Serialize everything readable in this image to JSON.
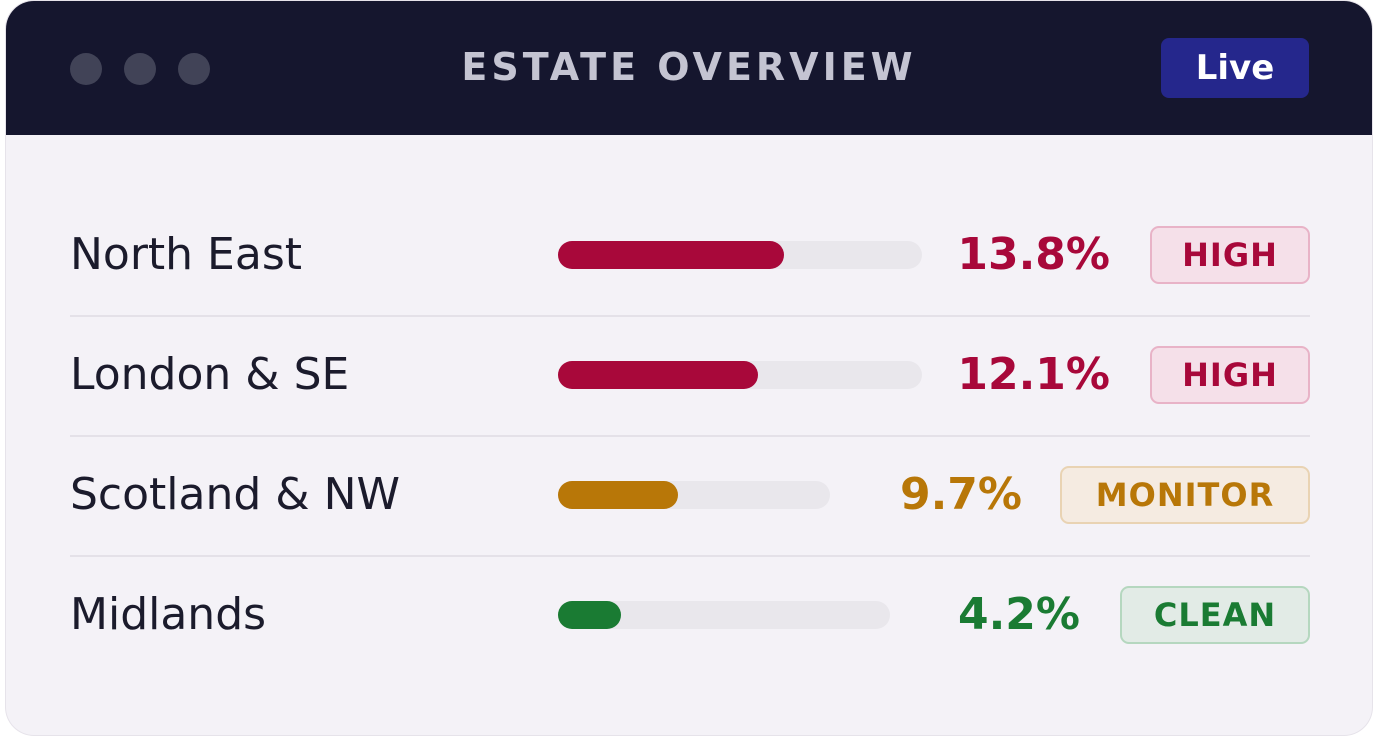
{
  "window": {
    "title": "ESTATE OVERVIEW",
    "status_badge": "Live"
  },
  "colors": {
    "titlebar": "#15162e",
    "live_badge": "#25278c",
    "high": "#a8083a",
    "monitor": "#b87708",
    "clean": "#1a7b33"
  },
  "rows": [
    {
      "region": "North East",
      "value": "13.8%",
      "fraction": 0.62,
      "status": "HIGH",
      "color": "#a8083a",
      "badge_bg": "#f5e0e9",
      "badge_border": "#e8b3c7"
    },
    {
      "region": "London & SE",
      "value": "12.1%",
      "fraction": 0.55,
      "status": "HIGH",
      "color": "#a8083a",
      "badge_bg": "#f5e0e9",
      "badge_border": "#e8b3c7"
    },
    {
      "region": "Scotland & NW",
      "value": "9.7%",
      "fraction": 0.44,
      "status": "MONITOR",
      "color": "#b87708",
      "badge_bg": "#f5ebe1",
      "badge_border": "#e9d3b3"
    },
    {
      "region": "Midlands",
      "value": "4.2%",
      "fraction": 0.19,
      "status": "CLEAN",
      "color": "#1a7b33",
      "badge_bg": "#e2ebe6",
      "badge_border": "#b5d7bf"
    }
  ]
}
